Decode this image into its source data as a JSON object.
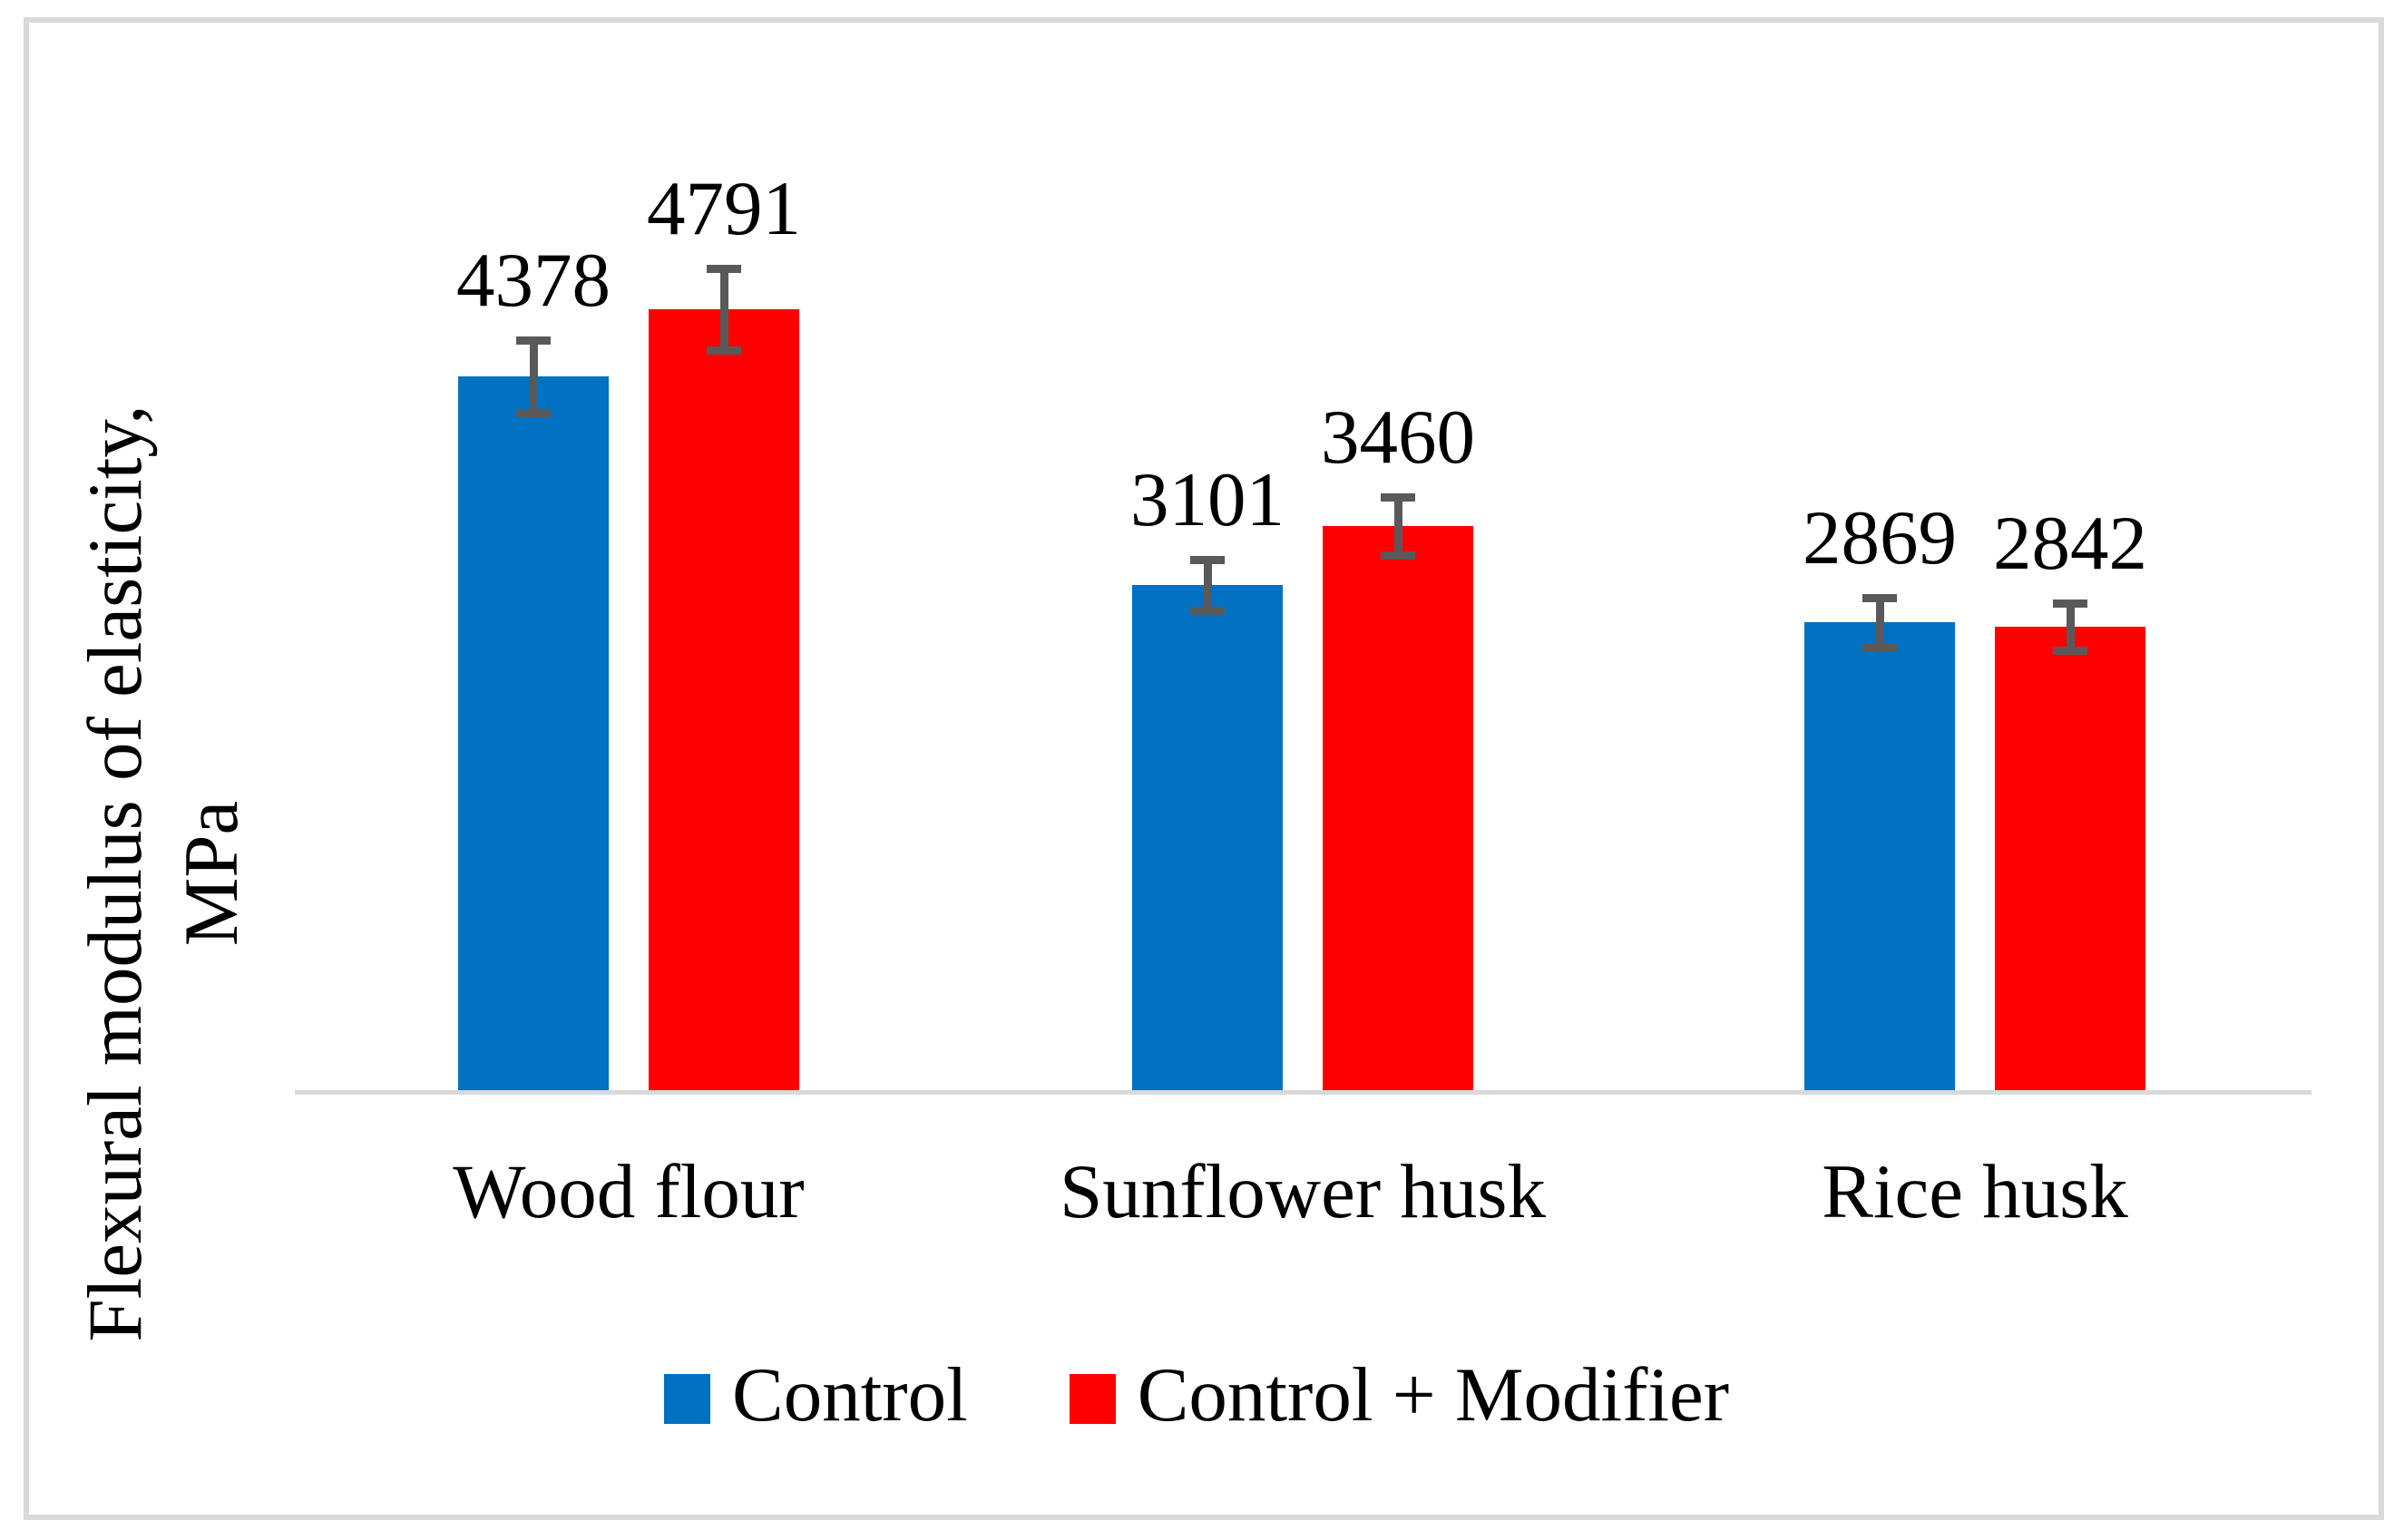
{
  "figure": {
    "background": "#FFFFFF",
    "frame_color": "#D9D9D9",
    "axis_line_color": "#D9D9D9",
    "error_bar_color": "#595959",
    "text_color": "#000000"
  },
  "chart_data": {
    "type": "bar",
    "title": "",
    "xlabel": "",
    "ylabel": "Flexural modulus of elasticity, MPa",
    "ylabel_lines": [
      "Flexural modulus of elasticity,",
      "MPa"
    ],
    "categories": [
      "Wood flour",
      "Sunflower husk",
      "Rice husk"
    ],
    "series": [
      {
        "name": "Control",
        "color": "#0070C0",
        "values": [
          4378,
          3101,
          2869
        ],
        "errors": [
          220,
          155,
          150
        ]
      },
      {
        "name": "Control + Modifier",
        "color": "#FF0000",
        "values": [
          4791,
          3460,
          2842
        ],
        "errors": [
          250,
          180,
          145
        ]
      }
    ],
    "data_labels": true,
    "error_bars": true,
    "grid": false,
    "y_axis_ticks_visible": false,
    "legend_position": "bottom",
    "ylim": [
      0,
      5600
    ]
  }
}
